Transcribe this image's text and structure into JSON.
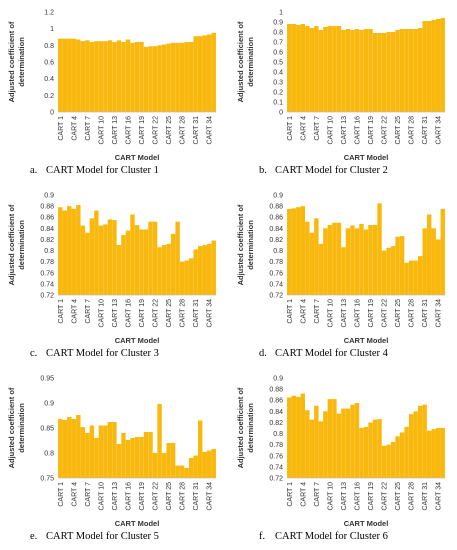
{
  "chart_data": [
    {
      "type": "bar",
      "caption_letter": "a.",
      "caption": "CART Model for Cluster 1",
      "xlabel": "CART Model",
      "ylabel_line1": "Adjusted coefficient of",
      "ylabel_line2": "determination",
      "ylim": [
        0,
        1.2
      ],
      "yticks": [
        "0",
        "0.2",
        "0.4",
        "0.6",
        "0.8",
        "1",
        "1.2"
      ],
      "ytick_values": [
        0,
        0.2,
        0.4,
        0.6,
        0.8,
        1.0,
        1.2
      ],
      "categories": [
        "CART 1",
        "CART 2",
        "CART 3",
        "CART 4",
        "CART 5",
        "CART 6",
        "CART 7",
        "CART 8",
        "CART 9",
        "CART 10",
        "CART 11",
        "CART 12",
        "CART 13",
        "CART 14",
        "CART 15",
        "CART 16",
        "CART 17",
        "CART 18",
        "CART 19",
        "CART 20",
        "CART 21",
        "CART 22",
        "CART 23",
        "CART 24",
        "CART 25",
        "CART 26",
        "CART 27",
        "CART 28",
        "CART 29",
        "CART 30",
        "CART 31",
        "CART 32",
        "CART 33",
        "CART 34",
        "CART 35"
      ],
      "shown_tick_labels": [
        "CART 1",
        "CART 4",
        "CART 7",
        "CART 10",
        "CART 13",
        "CART 16",
        "CART 19",
        "CART 22",
        "CART 25",
        "CART 28",
        "CART 31",
        "CART 34"
      ],
      "values": [
        0.88,
        0.88,
        0.88,
        0.88,
        0.87,
        0.85,
        0.86,
        0.84,
        0.85,
        0.85,
        0.85,
        0.86,
        0.84,
        0.86,
        0.84,
        0.87,
        0.83,
        0.84,
        0.84,
        0.78,
        0.79,
        0.79,
        0.8,
        0.81,
        0.82,
        0.83,
        0.83,
        0.83,
        0.84,
        0.84,
        0.91,
        0.91,
        0.92,
        0.93,
        0.95
      ],
      "color": "#f9b80e"
    },
    {
      "type": "bar",
      "caption_letter": "b.",
      "caption": "CART Model for Cluster 2",
      "xlabel": "CART Model",
      "ylabel_line1": "Adjusted coefficient of",
      "ylabel_line2": "determination",
      "ylim": [
        0,
        1
      ],
      "yticks": [
        "0",
        "0.1",
        "0.2",
        "0.3",
        "0.4",
        "0.5",
        "0.6",
        "0.7",
        "0.8",
        "0.9",
        "1"
      ],
      "ytick_values": [
        0,
        0.1,
        0.2,
        0.3,
        0.4,
        0.5,
        0.6,
        0.7,
        0.8,
        0.9,
        1.0
      ],
      "categories": [
        "CART 1",
        "CART 2",
        "CART 3",
        "CART 4",
        "CART 5",
        "CART 6",
        "CART 7",
        "CART 8",
        "CART 9",
        "CART 10",
        "CART 11",
        "CART 12",
        "CART 13",
        "CART 14",
        "CART 15",
        "CART 16",
        "CART 17",
        "CART 18",
        "CART 19",
        "CART 20",
        "CART 21",
        "CART 22",
        "CART 23",
        "CART 24",
        "CART 25",
        "CART 26",
        "CART 27",
        "CART 28",
        "CART 29",
        "CART 30",
        "CART 31",
        "CART 32",
        "CART 33",
        "CART 34",
        "CART 35"
      ],
      "shown_tick_labels": [
        "CART 1",
        "CART 4",
        "CART 7",
        "CART 10",
        "CART 13",
        "CART 16",
        "CART 19",
        "CART 22",
        "CART 25",
        "CART 28",
        "CART 31",
        "CART 34"
      ],
      "values": [
        0.88,
        0.88,
        0.87,
        0.88,
        0.86,
        0.84,
        0.86,
        0.82,
        0.85,
        0.86,
        0.86,
        0.86,
        0.82,
        0.83,
        0.82,
        0.83,
        0.82,
        0.83,
        0.83,
        0.79,
        0.79,
        0.79,
        0.8,
        0.8,
        0.82,
        0.83,
        0.83,
        0.83,
        0.83,
        0.84,
        0.91,
        0.91,
        0.92,
        0.93,
        0.94
      ],
      "color": "#f9b80e"
    },
    {
      "type": "bar",
      "caption_letter": "c.",
      "caption": "CART Model for Cluster 3",
      "xlabel": "CART Model",
      "ylabel_line1": "Adjusted coefficient of",
      "ylabel_line2": "determination",
      "ylim": [
        0.72,
        0.9
      ],
      "yticks": [
        "0.72",
        "0.74",
        "0.76",
        "0.78",
        "0.8",
        "0.82",
        "0.84",
        "0.86",
        "0.88",
        "0.9"
      ],
      "ytick_values": [
        0.72,
        0.74,
        0.76,
        0.78,
        0.8,
        0.82,
        0.84,
        0.86,
        0.88,
        0.9
      ],
      "categories": [
        "CART 1",
        "CART 2",
        "CART 3",
        "CART 4",
        "CART 5",
        "CART 6",
        "CART 7",
        "CART 8",
        "CART 9",
        "CART 10",
        "CART 11",
        "CART 12",
        "CART 13",
        "CART 14",
        "CART 15",
        "CART 16",
        "CART 17",
        "CART 18",
        "CART 19",
        "CART 20",
        "CART 21",
        "CART 22",
        "CART 23",
        "CART 24",
        "CART 25",
        "CART 26",
        "CART 27",
        "CART 28",
        "CART 29",
        "CART 30",
        "CART 31",
        "CART 32",
        "CART 33",
        "CART 34",
        "CART 35"
      ],
      "shown_tick_labels": [
        "CART 1",
        "CART 4",
        "CART 7",
        "CART 10",
        "CART 13",
        "CART 16",
        "CART 19",
        "CART 22",
        "CART 25",
        "CART 28",
        "CART 31",
        "CART 34"
      ],
      "values": [
        0.878,
        0.872,
        0.88,
        0.875,
        0.882,
        0.845,
        0.832,
        0.858,
        0.872,
        0.845,
        0.847,
        0.856,
        0.855,
        0.81,
        0.828,
        0.836,
        0.865,
        0.846,
        0.838,
        0.838,
        0.852,
        0.852,
        0.806,
        0.81,
        0.812,
        0.83,
        0.852,
        0.78,
        0.782,
        0.786,
        0.802,
        0.808,
        0.81,
        0.812,
        0.818
      ],
      "color": "#f9b80e"
    },
    {
      "type": "bar",
      "caption_letter": "d.",
      "caption": "CART Model for Cluster 4",
      "xlabel": "CART Model",
      "ylabel_line1": "Adjusted coefficient of",
      "ylabel_line2": "determination",
      "ylim": [
        0.72,
        0.9
      ],
      "yticks": [
        "0.72",
        "0.74",
        "0.76",
        "0.78",
        "0.8",
        "0.82",
        "0.84",
        "0.86",
        "0.88",
        "0.9"
      ],
      "ytick_values": [
        0.72,
        0.74,
        0.76,
        0.78,
        0.8,
        0.82,
        0.84,
        0.86,
        0.88,
        0.9
      ],
      "categories": [
        "CART 1",
        "CART 2",
        "CART 3",
        "CART 4",
        "CART 5",
        "CART 6",
        "CART 7",
        "CART 8",
        "CART 9",
        "CART 10",
        "CART 11",
        "CART 12",
        "CART 13",
        "CART 14",
        "CART 15",
        "CART 16",
        "CART 17",
        "CART 18",
        "CART 19",
        "CART 20",
        "CART 21",
        "CART 22",
        "CART 23",
        "CART 24",
        "CART 25",
        "CART 26",
        "CART 27",
        "CART 28",
        "CART 29",
        "CART 30",
        "CART 31",
        "CART 32",
        "CART 33",
        "CART 34",
        "CART 35"
      ],
      "shown_tick_labels": [
        "CART 1",
        "CART 4",
        "CART 7",
        "CART 10",
        "CART 13",
        "CART 16",
        "CART 19",
        "CART 22",
        "CART 25",
        "CART 28",
        "CART 31",
        "CART 34"
      ],
      "values": [
        0.875,
        0.876,
        0.878,
        0.88,
        0.852,
        0.832,
        0.858,
        0.812,
        0.84,
        0.846,
        0.85,
        0.85,
        0.806,
        0.84,
        0.845,
        0.84,
        0.848,
        0.838,
        0.846,
        0.846,
        0.885,
        0.8,
        0.805,
        0.808,
        0.825,
        0.826,
        0.778,
        0.782,
        0.782,
        0.79,
        0.84,
        0.865,
        0.84,
        0.82,
        0.875
      ],
      "color": "#f9b80e"
    },
    {
      "type": "bar",
      "caption_letter": "e.",
      "caption": "CART Model for Cluster 5",
      "xlabel": "CART Model",
      "ylabel_line1": "Adjusted coefficient of",
      "ylabel_line2": "determination",
      "ylim": [
        0.75,
        0.95
      ],
      "yticks": [
        "0.75",
        "0.8",
        "0.85",
        "0.9",
        "0.95"
      ],
      "ytick_values": [
        0.75,
        0.8,
        0.85,
        0.9,
        0.95
      ],
      "categories": [
        "CART 1",
        "CART 2",
        "CART 3",
        "CART 4",
        "CART 5",
        "CART 6",
        "CART 7",
        "CART 8",
        "CART 9",
        "CART 10",
        "CART 11",
        "CART 12",
        "CART 13",
        "CART 14",
        "CART 15",
        "CART 16",
        "CART 17",
        "CART 18",
        "CART 19",
        "CART 20",
        "CART 21",
        "CART 22",
        "CART 23",
        "CART 24",
        "CART 25",
        "CART 26",
        "CART 27",
        "CART 28",
        "CART 29",
        "CART 30",
        "CART 31",
        "CART 32",
        "CART 33",
        "CART 34",
        "CART 35"
      ],
      "shown_tick_labels": [
        "CART 1",
        "CART 4",
        "CART 7",
        "CART 10",
        "CART 13",
        "CART 16",
        "CART 19",
        "CART 22",
        "CART 25",
        "CART 28",
        "CART 31",
        "CART 34"
      ],
      "values": [
        0.868,
        0.866,
        0.872,
        0.868,
        0.876,
        0.852,
        0.84,
        0.855,
        0.83,
        0.855,
        0.855,
        0.862,
        0.862,
        0.818,
        0.84,
        0.826,
        0.83,
        0.832,
        0.832,
        0.842,
        0.842,
        0.8,
        0.898,
        0.8,
        0.82,
        0.82,
        0.775,
        0.775,
        0.77,
        0.79,
        0.795,
        0.865,
        0.802,
        0.805,
        0.808
      ],
      "color": "#f9b80e"
    },
    {
      "type": "bar",
      "caption_letter": "f.",
      "caption": "CART Model for Cluster 6",
      "xlabel": "CART Model",
      "ylabel_line1": "Adjusted coefficient of",
      "ylabel_line2": "determination",
      "ylim": [
        0.72,
        0.9
      ],
      "yticks": [
        "0.72",
        "0.74",
        "0.76",
        "0.78",
        "0.8",
        "0.82",
        "0.84",
        "0.86",
        "0.88",
        "0.9"
      ],
      "ytick_values": [
        0.72,
        0.74,
        0.76,
        0.78,
        0.8,
        0.82,
        0.84,
        0.86,
        0.88,
        0.9
      ],
      "categories": [
        "CART 1",
        "CART 2",
        "CART 3",
        "CART 4",
        "CART 5",
        "CART 6",
        "CART 7",
        "CART 8",
        "CART 9",
        "CART 10",
        "CART 11",
        "CART 12",
        "CART 13",
        "CART 14",
        "CART 15",
        "CART 16",
        "CART 17",
        "CART 18",
        "CART 19",
        "CART 20",
        "CART 21",
        "CART 22",
        "CART 23",
        "CART 24",
        "CART 25",
        "CART 26",
        "CART 27",
        "CART 28",
        "CART 29",
        "CART 30",
        "CART 31",
        "CART 32",
        "CART 33",
        "CART 34",
        "CART 35"
      ],
      "shown_tick_labels": [
        "CART 1",
        "CART 4",
        "CART 7",
        "CART 10",
        "CART 13",
        "CART 16",
        "CART 19",
        "CART 22",
        "CART 25",
        "CART 28",
        "CART 31",
        "CART 34"
      ],
      "values": [
        0.865,
        0.868,
        0.866,
        0.872,
        0.842,
        0.825,
        0.85,
        0.822,
        0.84,
        0.862,
        0.862,
        0.836,
        0.845,
        0.845,
        0.852,
        0.855,
        0.81,
        0.812,
        0.82,
        0.825,
        0.826,
        0.778,
        0.78,
        0.785,
        0.795,
        0.802,
        0.812,
        0.835,
        0.84,
        0.85,
        0.852,
        0.805,
        0.808,
        0.81,
        0.81
      ],
      "color": "#f9b80e"
    }
  ]
}
